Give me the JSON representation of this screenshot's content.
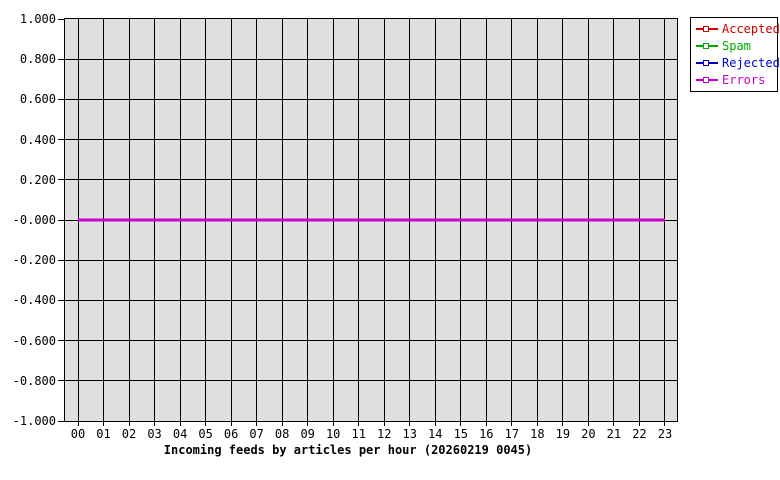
{
  "chart_data": {
    "type": "line",
    "title": "Incoming feeds by articles per hour (20260219 0045)",
    "xlabel": "",
    "ylabel": "",
    "x_categories": [
      "00",
      "01",
      "02",
      "03",
      "04",
      "05",
      "06",
      "07",
      "08",
      "09",
      "10",
      "11",
      "12",
      "13",
      "14",
      "15",
      "16",
      "17",
      "18",
      "19",
      "20",
      "21",
      "22",
      "23"
    ],
    "y_tick_labels": [
      "1.000",
      "0.800",
      "0.600",
      "0.400",
      "0.200",
      "-0.000",
      "-0.200",
      "-0.400",
      "-0.600",
      "-0.800",
      "-1.000"
    ],
    "ylim": [
      -1,
      1
    ],
    "grid": true,
    "legend_position": "outside-top-right",
    "colors": {
      "plot_background": "#e0e0e0",
      "page_background": "#ffffff",
      "grid": "#000000",
      "text": "#000000"
    },
    "series": [
      {
        "name": "Accepted",
        "color": "#cc0000",
        "values": [
          0,
          0,
          0,
          0,
          0,
          0,
          0,
          0,
          0,
          0,
          0,
          0,
          0,
          0,
          0,
          0,
          0,
          0,
          0,
          0,
          0,
          0,
          0,
          0
        ]
      },
      {
        "name": "Spam",
        "color": "#00aa00",
        "values": [
          0,
          0,
          0,
          0,
          0,
          0,
          0,
          0,
          0,
          0,
          0,
          0,
          0,
          0,
          0,
          0,
          0,
          0,
          0,
          0,
          0,
          0,
          0,
          0
        ]
      },
      {
        "name": "Rejected",
        "color": "#0000cc",
        "values": [
          0,
          0,
          0,
          0,
          0,
          0,
          0,
          0,
          0,
          0,
          0,
          0,
          0,
          0,
          0,
          0,
          0,
          0,
          0,
          0,
          0,
          0,
          0,
          0
        ]
      },
      {
        "name": "Errors",
        "color": "#cc00cc",
        "values": [
          0,
          0,
          0,
          0,
          0,
          0,
          0,
          0,
          0,
          0,
          0,
          0,
          0,
          0,
          0,
          0,
          0,
          0,
          0,
          0,
          0,
          0,
          0,
          0
        ]
      }
    ]
  }
}
